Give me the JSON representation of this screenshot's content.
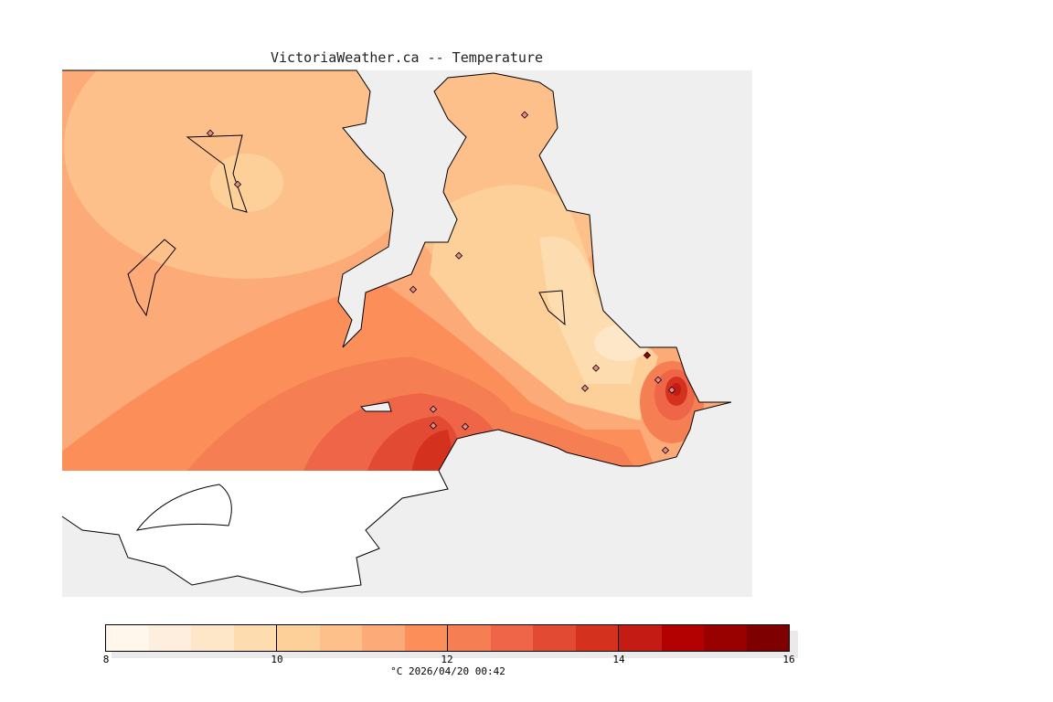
{
  "title": "VictoriaWeather.ca -- Temperature",
  "colorbar": {
    "ticks": [
      "8",
      "10",
      "12",
      "14",
      "16"
    ],
    "caption": "°C  2026/04/20 00:42",
    "colors": [
      "#fff7ec",
      "#feeedd",
      "#fee6c9",
      "#fddcaf",
      "#fdd09a",
      "#fdc08a",
      "#fcaa77",
      "#fc8f59",
      "#f67e53",
      "#ee6548",
      "#e24a33",
      "#d5311f",
      "#c41c14",
      "#b30000",
      "#990000",
      "#7f0000"
    ]
  }
}
